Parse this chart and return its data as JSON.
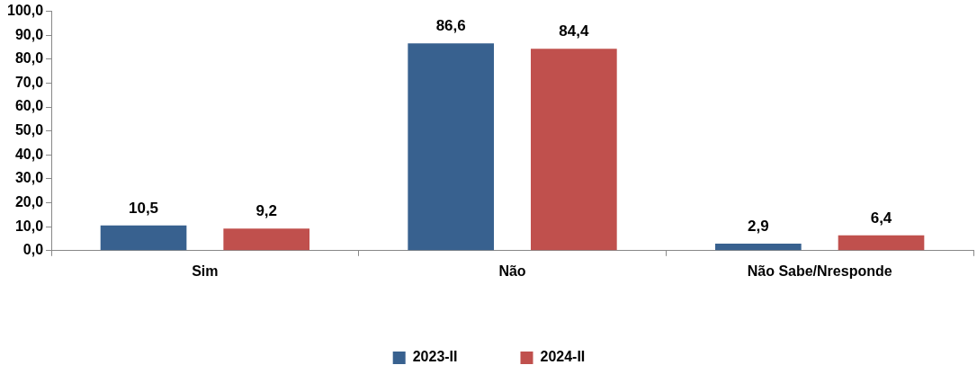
{
  "chart_data": {
    "type": "bar",
    "categories": [
      "Sim",
      "Não",
      "Não Sabe/Nresponde"
    ],
    "series": [
      {
        "name": "2023-II",
        "color": "#38618f",
        "values": [
          10.5,
          86.6,
          2.9
        ],
        "value_labels": [
          "10,5",
          "86,6",
          "2,9"
        ]
      },
      {
        "name": "2024-II",
        "color": "#c0504d",
        "values": [
          9.2,
          84.4,
          6.4
        ],
        "value_labels": [
          "9,2",
          "84,4",
          "6,4"
        ]
      }
    ],
    "ylim": [
      0,
      100
    ],
    "yticks": [
      {
        "value": 0,
        "label": "0,0"
      },
      {
        "value": 10,
        "label": "10,0"
      },
      {
        "value": 20,
        "label": "20,0"
      },
      {
        "value": 30,
        "label": "30,0"
      },
      {
        "value": 40,
        "label": "40,0"
      },
      {
        "value": 50,
        "label": "50,0"
      },
      {
        "value": 60,
        "label": "60,0"
      },
      {
        "value": 70,
        "label": "70,0"
      },
      {
        "value": 80,
        "label": "80,0"
      },
      {
        "value": 90,
        "label": "90,0"
      },
      {
        "value": 100,
        "label": "100,0"
      }
    ],
    "legend": "bottom"
  }
}
